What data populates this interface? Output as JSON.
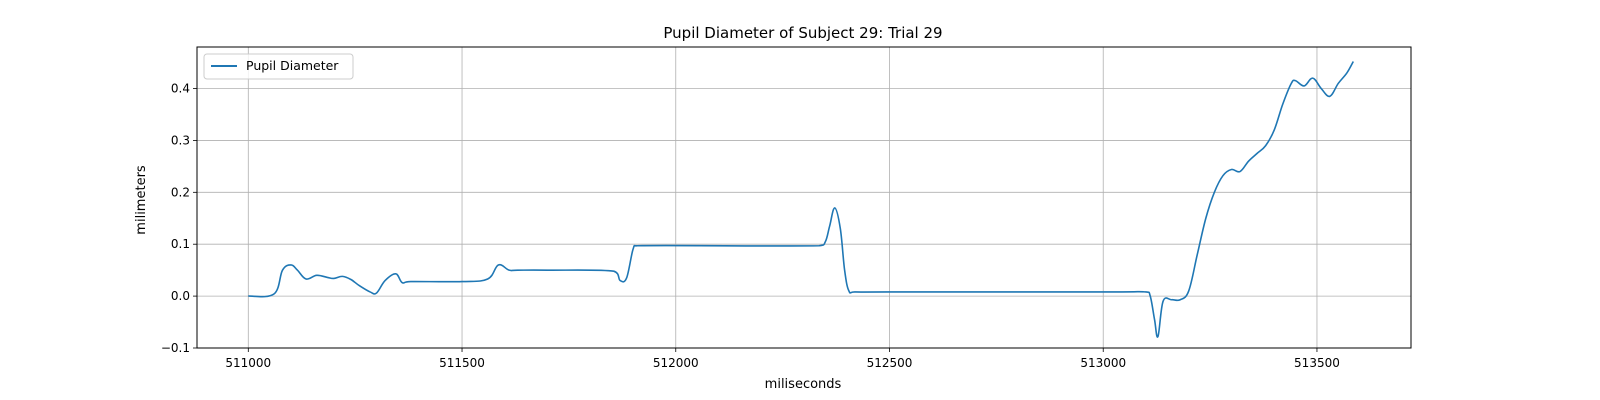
{
  "chart_data": {
    "type": "line",
    "title": "Pupil Diameter of Subject 29: Trial 29",
    "xlabel": "miliseconds",
    "ylabel": "milimeters",
    "xlim": [
      510880,
      513720
    ],
    "ylim": [
      -0.1,
      0.48
    ],
    "xticks": [
      511000,
      511500,
      512000,
      512500,
      513000,
      513500
    ],
    "yticks": [
      -0.1,
      0.0,
      0.1,
      0.2,
      0.3,
      0.4
    ],
    "xtick_labels": [
      "511000",
      "511500",
      "512000",
      "512500",
      "513000",
      "513500"
    ],
    "ytick_labels": [
      "−0.1",
      "0.0",
      "0.1",
      "0.2",
      "0.3",
      "0.4"
    ],
    "grid": true,
    "legend_position": "top-left",
    "color": "#1f77b4",
    "series": [
      {
        "name": "Pupil Diameter",
        "x": [
          511000,
          511060,
          511080,
          511100,
          511115,
          511135,
          511160,
          511185,
          511200,
          511220,
          511240,
          511260,
          511285,
          511300,
          511320,
          511345,
          511360,
          511380,
          511500,
          511560,
          511585,
          511610,
          511630,
          511700,
          511855,
          511870,
          511885,
          511900,
          511910,
          512335,
          512350,
          512360,
          512372,
          512385,
          512395,
          512405,
          512420,
          512500,
          513000,
          513100,
          513110,
          513120,
          513128,
          513140,
          513160,
          513180,
          513200,
          513220,
          513240,
          513260,
          513280,
          513300,
          513320,
          513340,
          513360,
          513380,
          513400,
          513420,
          513440,
          513450,
          513470,
          513490,
          513510,
          513530,
          513550,
          513570,
          513585
        ],
        "y": [
          0.0,
          0.004,
          0.05,
          0.06,
          0.05,
          0.033,
          0.04,
          0.036,
          0.034,
          0.038,
          0.032,
          0.02,
          0.008,
          0.006,
          0.03,
          0.043,
          0.026,
          0.028,
          0.028,
          0.033,
          0.06,
          0.05,
          0.05,
          0.05,
          0.048,
          0.03,
          0.035,
          0.09,
          0.097,
          0.097,
          0.105,
          0.135,
          0.17,
          0.13,
          0.05,
          0.01,
          0.008,
          0.008,
          0.008,
          0.008,
          0.0,
          -0.045,
          -0.078,
          -0.01,
          -0.007,
          -0.007,
          0.01,
          0.08,
          0.15,
          0.2,
          0.232,
          0.244,
          0.24,
          0.26,
          0.275,
          0.29,
          0.32,
          0.37,
          0.41,
          0.415,
          0.405,
          0.42,
          0.4,
          0.385,
          0.41,
          0.43,
          0.452
        ]
      }
    ]
  }
}
